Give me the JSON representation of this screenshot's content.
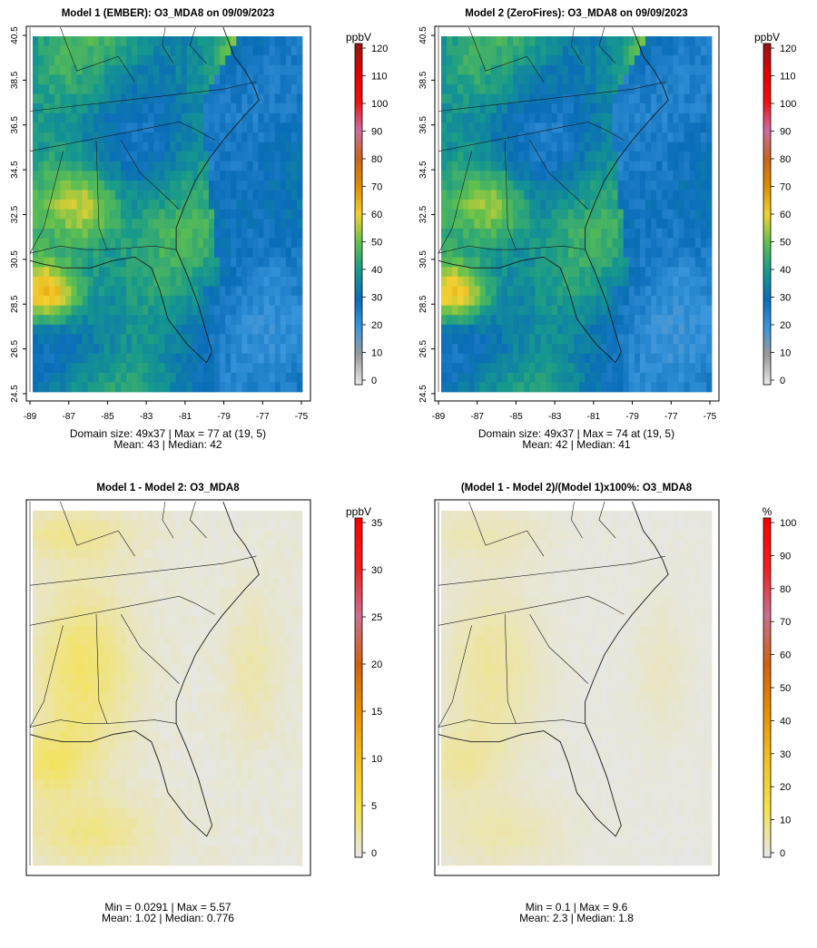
{
  "chart_data": [
    {
      "type": "heatmap",
      "title": "Model 1 (EMBER): O3_MDA8 on 09/09/2023",
      "x_ticks": [
        "-89",
        "-87",
        "-85",
        "-83",
        "-81",
        "-79",
        "-77",
        "-75"
      ],
      "y_ticks": [
        "24.5",
        "26.5",
        "28.5",
        "30.5",
        "32.5",
        "34.5",
        "36.5",
        "38.5",
        "40.5"
      ],
      "xlim": [
        -89,
        -75
      ],
      "ylim": [
        24.5,
        40.5
      ],
      "colorbar": {
        "label": "ppbV",
        "ticks": [
          "0",
          "10",
          "20",
          "30",
          "40",
          "50",
          "60",
          "70",
          "80",
          "90",
          "100",
          "110",
          "120"
        ],
        "range": [
          0,
          120
        ]
      },
      "stats": {
        "line1": "Domain size: 49x37 | Max = 77 at (19, 5)",
        "line2": "Mean: 43 |  Median: 42"
      },
      "grid": {
        "cols": 49,
        "rows": 37,
        "mean": 43,
        "max": 77,
        "max_at": [
          19,
          5
        ]
      }
    },
    {
      "type": "heatmap",
      "title": "Model 2 (ZeroFires): O3_MDA8 on 09/09/2023",
      "x_ticks": [
        "-89",
        "-87",
        "-85",
        "-83",
        "-81",
        "-79",
        "-77",
        "-75"
      ],
      "y_ticks": [
        "24.5",
        "26.5",
        "28.5",
        "30.5",
        "32.5",
        "34.5",
        "36.5",
        "38.5",
        "40.5"
      ],
      "xlim": [
        -89,
        -75
      ],
      "ylim": [
        24.5,
        40.5
      ],
      "colorbar": {
        "label": "ppbV",
        "ticks": [
          "0",
          "10",
          "20",
          "30",
          "40",
          "50",
          "60",
          "70",
          "80",
          "90",
          "100",
          "110",
          "120"
        ],
        "range": [
          0,
          120
        ]
      },
      "stats": {
        "line1": "Domain size: 49x37 | Max = 74 at (19, 5)",
        "line2": "Mean: 42 |  Median: 41"
      },
      "grid": {
        "cols": 49,
        "rows": 37,
        "mean": 42,
        "max": 74,
        "max_at": [
          19,
          5
        ]
      }
    },
    {
      "type": "heatmap",
      "title": "Model 1 - Model 2: O3_MDA8",
      "colorbar": {
        "label": "ppbV",
        "ticks": [
          "0",
          "5",
          "10",
          "15",
          "20",
          "25",
          "30",
          "35"
        ],
        "range": [
          0,
          35
        ]
      },
      "stats": {
        "line1": "Min = 0.0291 | Max = 5.57",
        "line2": "Mean: 1.02 |  Median: 0.776"
      },
      "grid": {
        "cols": 49,
        "rows": 37,
        "min": 0.0291,
        "max": 5.57,
        "mean": 1.02
      }
    },
    {
      "type": "heatmap",
      "title": "(Model 1 - Model 2)/(Model 1)x100%: O3_MDA8",
      "colorbar": {
        "label": "%",
        "ticks": [
          "0",
          "10",
          "20",
          "30",
          "40",
          "50",
          "60",
          "70",
          "80",
          "90",
          "100"
        ],
        "range": [
          0,
          100
        ]
      },
      "stats": {
        "line1": "Min = 0.1 | Max = 9.6",
        "line2": "Mean: 2.3 |  Median: 1.8"
      },
      "grid": {
        "cols": 49,
        "rows": 37,
        "min": 0.1,
        "max": 9.6,
        "mean": 2.3
      }
    }
  ],
  "palettes": {
    "ozone": [
      "#e6e6e6",
      "#9a9a9a",
      "#3a96dc",
      "#0a6db8",
      "#17998c",
      "#5fc04e",
      "#f2d030",
      "#dc8d00",
      "#c86420",
      "#cc6ca0",
      "#f01010",
      "#e60000",
      "#9a1414"
    ],
    "diff": [
      "#e6e6e6",
      "#f5e24a",
      "#f2c020",
      "#e89000",
      "#d06010",
      "#c87090",
      "#f02020",
      "#ff0000"
    ]
  }
}
